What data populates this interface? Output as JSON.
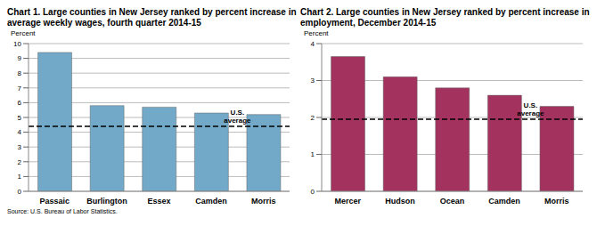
{
  "chart_data": [
    {
      "type": "bar",
      "title": "Chart 1. Large counties in New Jersey ranked by percent increase in average weekly wages, fourth quarter 2014-15",
      "y_label": "Percent",
      "categories": [
        "Passaic",
        "Burlington",
        "Essex",
        "Camden",
        "Morris"
      ],
      "values": [
        9.4,
        5.8,
        5.7,
        5.3,
        5.2
      ],
      "color": "#72a9c9",
      "ylim": [
        0,
        10
      ],
      "yticks": [
        0,
        1,
        2,
        3,
        4,
        5,
        6,
        7,
        8,
        9,
        10
      ],
      "grid": true,
      "reference_line": {
        "label": "U.S. average",
        "value": 4.4
      },
      "source": "Source: U.S. Bureau of Labor Statistics."
    },
    {
      "type": "bar",
      "title": "Chart 2. Large counties in New Jersey ranked by percent increase in employment, December 2014-15",
      "y_label": "Percent",
      "categories": [
        "Mercer",
        "Hudson",
        "Ocean",
        "Camden",
        "Morris"
      ],
      "values": [
        3.65,
        3.1,
        2.8,
        2.6,
        2.3
      ],
      "color": "#a3325f",
      "ylim": [
        0,
        4
      ],
      "yticks": [
        0,
        1,
        2,
        3,
        4
      ],
      "grid": true,
      "reference_line": {
        "label": "U.S. average",
        "value": 1.95
      }
    }
  ]
}
